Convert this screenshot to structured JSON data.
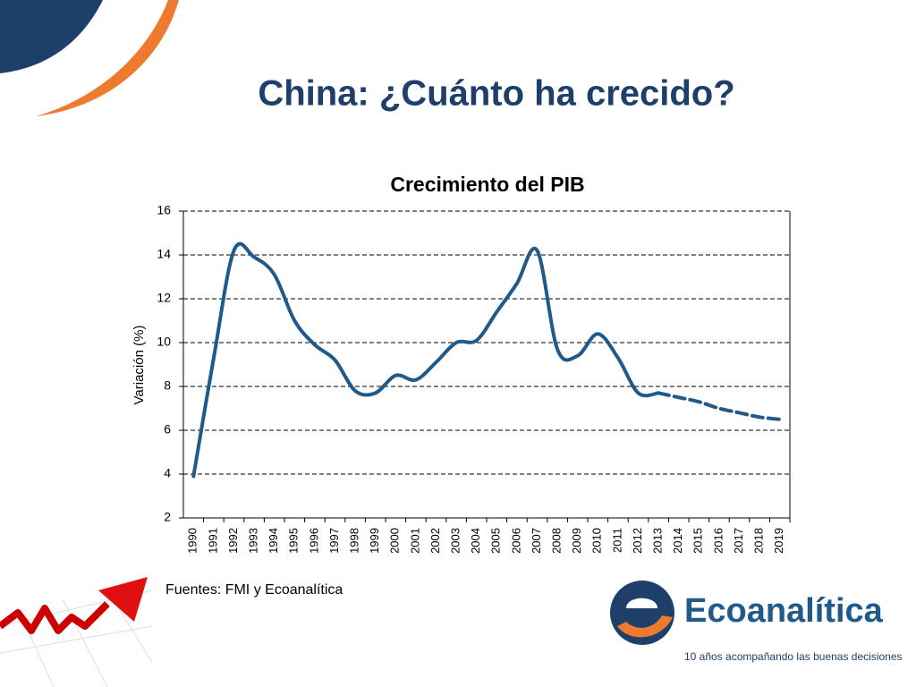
{
  "slide": {
    "title": "China: ¿Cuánto ha crecido?",
    "source": "Fuentes: FMI y Ecoanalítica",
    "logo": "Ecoanalítica",
    "tagline": "10 años acompañando las buenas decisiones"
  },
  "chart_data": {
    "type": "line",
    "title": "Crecimiento del PIB",
    "y_label": "Variación (%)",
    "categories": [
      "1990",
      "1991",
      "1992",
      "1993",
      "1994",
      "1995",
      "1996",
      "1997",
      "1998",
      "1999",
      "2000",
      "2001",
      "2002",
      "2003",
      "2004",
      "2005",
      "2006",
      "2007",
      "2008",
      "2009",
      "2010",
      "2011",
      "2012",
      "2013",
      "2014",
      "2015",
      "2016",
      "2017",
      "2018",
      "2019"
    ],
    "series": [
      {
        "color": "#1f5a8a",
        "dashed": false,
        "values": [
          3.9,
          9.3,
          14.2,
          13.9,
          13.1,
          11.0,
          9.9,
          9.2,
          7.8,
          7.7,
          8.5,
          8.3,
          9.1,
          10.0,
          10.1,
          11.4,
          12.7,
          14.2,
          9.7,
          9.4,
          10.4,
          9.3,
          7.7,
          7.7,
          null,
          null,
          null,
          null,
          null,
          null
        ]
      },
      {
        "color": "#1f5a8a",
        "dashed": true,
        "values": [
          null,
          null,
          null,
          null,
          null,
          null,
          null,
          null,
          null,
          null,
          null,
          null,
          null,
          null,
          null,
          null,
          null,
          null,
          null,
          null,
          null,
          null,
          null,
          7.7,
          7.5,
          7.3,
          7.0,
          6.8,
          6.6,
          6.5
        ]
      }
    ],
    "ylim": [
      2,
      16
    ],
    "yticks": [
      2,
      4,
      6,
      8,
      10,
      12,
      14,
      16
    ],
    "grid": true
  }
}
